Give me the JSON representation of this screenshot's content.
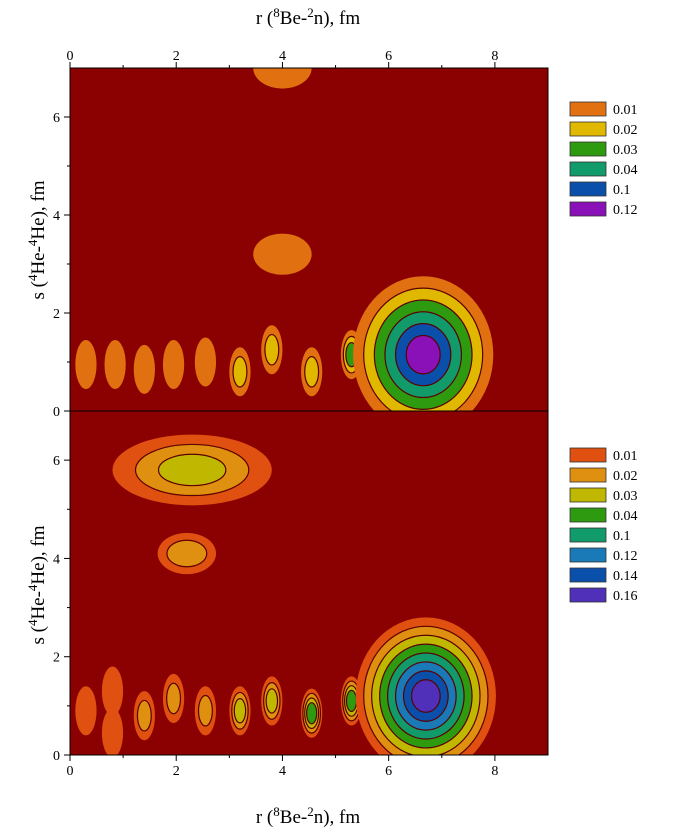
{
  "chart_data": [
    {
      "type": "heatmap",
      "subtype": "filled-contour",
      "panel": "top",
      "title": "",
      "xlabel": {
        "prefix": "r (",
        "sup1": "8",
        "mid": "Be-",
        "sup2": "2",
        "suffix": "n), fm"
      },
      "ylabel": {
        "prefix": "s (",
        "sup1": "4",
        "mid": "He-",
        "sup2": "4",
        "suffix": "He), fm"
      },
      "xlim": [
        0,
        9
      ],
      "ylim": [
        0,
        7
      ],
      "x_ticks": [
        "0",
        "2",
        "4",
        "6",
        "8"
      ],
      "y_ticks": [
        "0",
        "2",
        "4",
        "6"
      ],
      "x_axis_position": "top",
      "grid": false,
      "legend_position": "right",
      "background_color": "#8b0000",
      "levels": [
        {
          "label": "0.01",
          "color": "#e07010"
        },
        {
          "label": "0.02",
          "color": "#e0b800"
        },
        {
          "label": "0.03",
          "color": "#2e9a10"
        },
        {
          "label": "0.04",
          "color": "#119a6a"
        },
        {
          "label": "0.1",
          "color": "#0a4faa"
        },
        {
          "label": "0.12",
          "color": "#8a10b8"
        }
      ],
      "peaks": [
        {
          "r": 0.3,
          "s": 0.95,
          "level": 0
        },
        {
          "r": 0.85,
          "s": 0.95,
          "level": 0
        },
        {
          "r": 1.4,
          "s": 0.85,
          "level": 0
        },
        {
          "r": 1.95,
          "s": 0.95,
          "level": 0
        },
        {
          "r": 2.55,
          "s": 1.0,
          "level": 0
        },
        {
          "r": 3.2,
          "s": 0.8,
          "level": 1
        },
        {
          "r": 3.8,
          "s": 1.25,
          "level": 1
        },
        {
          "r": 4.55,
          "s": 0.8,
          "level": 1
        },
        {
          "r": 5.3,
          "s": 1.15,
          "level": 2
        },
        {
          "r": 6.65,
          "s": 1.15,
          "level": 5
        },
        {
          "r": 4.0,
          "s": 3.2,
          "level": 0
        },
        {
          "r": 4.0,
          "s": 7.0,
          "level": 0
        }
      ]
    },
    {
      "type": "heatmap",
      "subtype": "filled-contour",
      "panel": "bottom",
      "title": "",
      "xlabel": {
        "prefix": "r (",
        "sup1": "8",
        "mid": "Be-",
        "sup2": "2",
        "suffix": "n), fm"
      },
      "ylabel": {
        "prefix": "s (",
        "sup1": "4",
        "mid": "He-",
        "sup2": "4",
        "suffix": "He), fm"
      },
      "xlim": [
        0,
        9
      ],
      "ylim": [
        0,
        7
      ],
      "x_ticks": [
        "0",
        "2",
        "4",
        "6",
        "8"
      ],
      "y_ticks": [
        "0",
        "2",
        "4",
        "6"
      ],
      "x_axis_position": "bottom",
      "grid": false,
      "legend_position": "right",
      "background_color": "#8b0000",
      "levels": [
        {
          "label": "0.01",
          "color": "#e05010"
        },
        {
          "label": "0.02",
          "color": "#e09010"
        },
        {
          "label": "0.03",
          "color": "#c0b800"
        },
        {
          "label": "0.04",
          "color": "#2e9a10"
        },
        {
          "label": "0.1",
          "color": "#119a6a"
        },
        {
          "label": "0.12",
          "color": "#1a7ab8"
        },
        {
          "label": "0.14",
          "color": "#0a4faa"
        },
        {
          "label": "0.16",
          "color": "#5030b8"
        }
      ],
      "peaks": [
        {
          "r": 0.3,
          "s": 0.9,
          "level": 0
        },
        {
          "r": 0.8,
          "s": 1.3,
          "level": 0
        },
        {
          "r": 0.8,
          "s": 0.45,
          "level": 0
        },
        {
          "r": 1.4,
          "s": 0.8,
          "level": 1
        },
        {
          "r": 1.95,
          "s": 1.15,
          "level": 1
        },
        {
          "r": 2.55,
          "s": 0.9,
          "level": 1
        },
        {
          "r": 3.2,
          "s": 0.9,
          "level": 2
        },
        {
          "r": 3.8,
          "s": 1.1,
          "level": 2
        },
        {
          "r": 4.55,
          "s": 0.85,
          "level": 3
        },
        {
          "r": 5.3,
          "s": 1.1,
          "level": 3
        },
        {
          "r": 6.7,
          "s": 1.2,
          "level": 7
        },
        {
          "r": 2.3,
          "s": 5.8,
          "level": 2
        },
        {
          "r": 2.2,
          "s": 4.1,
          "level": 1
        }
      ]
    }
  ]
}
